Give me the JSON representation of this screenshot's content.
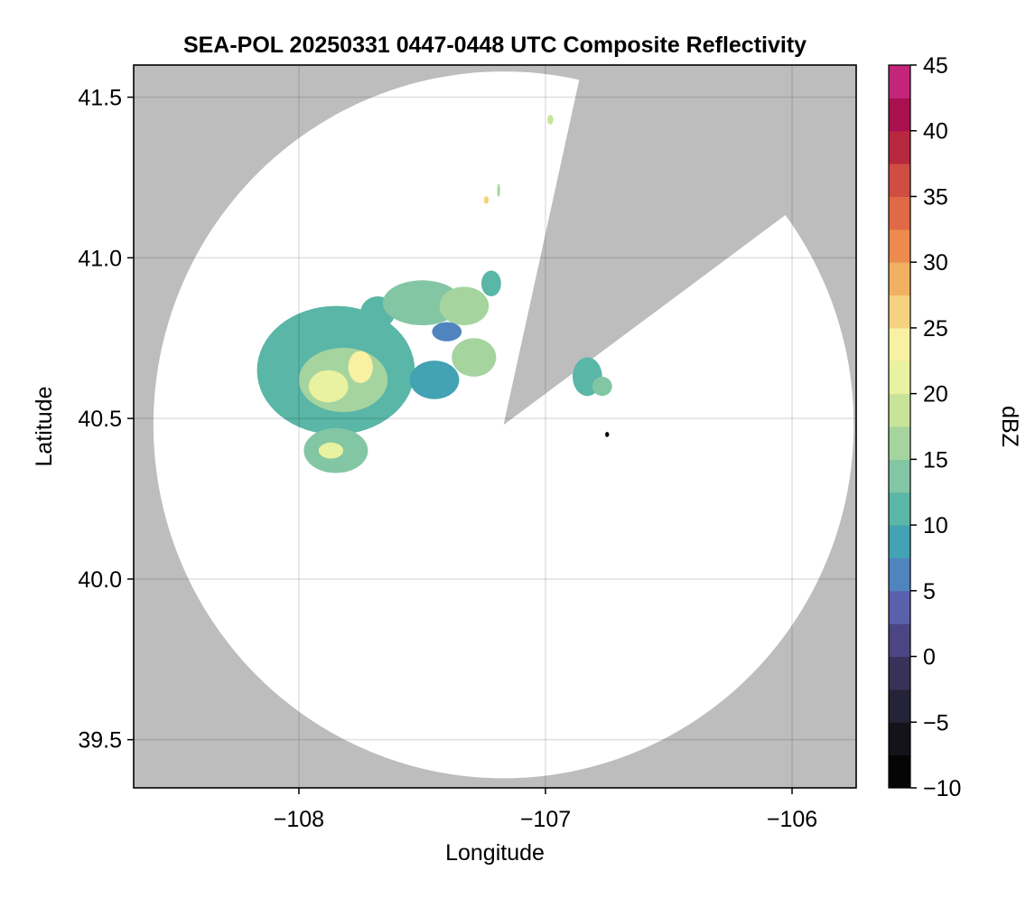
{
  "chart_data": {
    "type": "heatmap",
    "title": "SEA-POL 20250331 0447-0448 UTC Composite Reflectivity",
    "xlabel": "Longitude",
    "ylabel": "Latitude",
    "xlim": [
      -108.67,
      -105.74
    ],
    "ylim": [
      39.35,
      41.6
    ],
    "xticks": [
      -108,
      -107,
      -106
    ],
    "xtick_labels": [
      "−108",
      "−107",
      "−106"
    ],
    "yticks": [
      39.5,
      40.0,
      40.5,
      41.0,
      41.5
    ],
    "ytick_labels": [
      "39.5",
      "40.0",
      "40.5",
      "41.0",
      "41.5"
    ],
    "grid": true,
    "background_color": "#bdbdbd",
    "radar": {
      "center": [
        -107.17,
        40.48
      ],
      "range_lon": 1.42,
      "range_lat": 1.1,
      "blocked_sector": {
        "from_point": [
          -106.87,
          41.53
        ],
        "to_point": [
          -106.05,
          41.12
        ]
      }
    },
    "colorbar": {
      "label": "dBZ",
      "min": -10,
      "max": 45,
      "step": 2.5,
      "ticks": [
        -10,
        -5,
        0,
        5,
        10,
        15,
        20,
        25,
        30,
        35,
        40,
        45
      ],
      "tick_labels": [
        "−10",
        "−5",
        "0",
        "5",
        "10",
        "15",
        "20",
        "25",
        "30",
        "35",
        "40",
        "45"
      ],
      "colormap": "Spectral_r",
      "colors": [
        "#050506",
        "#14131c",
        "#252338",
        "#383258",
        "#4b4584",
        "#5b60ad",
        "#4f84bf",
        "#43a2b3",
        "#5ab6a6",
        "#83c6a4",
        "#a5d49f",
        "#c8e39a",
        "#e8f2a0",
        "#f8f0a2",
        "#f5d27f",
        "#f1b060",
        "#ec8b4d",
        "#e06a45",
        "#cf4d42",
        "#b8283f",
        "#a81050",
        "#c2257a",
        "#d94c9f",
        "#e07bb8",
        "#d79ccc",
        "#b882bf",
        "#9460a8",
        "#6d3b8f",
        "#4a1a6e",
        "#300650"
      ]
    },
    "echoes": [
      {
        "lon": -107.85,
        "lat": 40.65,
        "rx": 0.32,
        "ry": 0.2,
        "dbz": 12
      },
      {
        "lon": -107.82,
        "lat": 40.62,
        "rx": 0.18,
        "ry": 0.1,
        "dbz": 17
      },
      {
        "lon": -107.88,
        "lat": 40.6,
        "rx": 0.08,
        "ry": 0.05,
        "dbz": 22
      },
      {
        "lon": -107.75,
        "lat": 40.66,
        "rx": 0.05,
        "ry": 0.05,
        "dbz": 23
      },
      {
        "lon": -107.85,
        "lat": 40.4,
        "rx": 0.13,
        "ry": 0.07,
        "dbz": 14
      },
      {
        "lon": -107.87,
        "lat": 40.4,
        "rx": 0.05,
        "ry": 0.025,
        "dbz": 21
      },
      {
        "lon": -107.68,
        "lat": 40.83,
        "rx": 0.07,
        "ry": 0.05,
        "dbz": 10
      },
      {
        "lon": -107.5,
        "lat": 40.86,
        "rx": 0.16,
        "ry": 0.07,
        "dbz": 13
      },
      {
        "lon": -107.33,
        "lat": 40.85,
        "rx": 0.1,
        "ry": 0.06,
        "dbz": 16
      },
      {
        "lon": -107.45,
        "lat": 40.62,
        "rx": 0.1,
        "ry": 0.06,
        "dbz": 8
      },
      {
        "lon": -107.29,
        "lat": 40.69,
        "rx": 0.09,
        "ry": 0.06,
        "dbz": 15
      },
      {
        "lon": -107.4,
        "lat": 40.77,
        "rx": 0.06,
        "ry": 0.03,
        "dbz": 7
      },
      {
        "lon": -107.22,
        "lat": 40.92,
        "rx": 0.04,
        "ry": 0.04,
        "dbz": 11
      },
      {
        "lon": -106.83,
        "lat": 40.63,
        "rx": 0.06,
        "ry": 0.06,
        "dbz": 11
      },
      {
        "lon": -106.77,
        "lat": 40.6,
        "rx": 0.04,
        "ry": 0.03,
        "dbz": 14
      },
      {
        "lon": -107.24,
        "lat": 41.18,
        "rx": 0.01,
        "ry": 0.012,
        "dbz": 26
      },
      {
        "lon": -107.19,
        "lat": 41.21,
        "rx": 0.006,
        "ry": 0.02,
        "dbz": 16
      },
      {
        "lon": -106.98,
        "lat": 41.43,
        "rx": 0.012,
        "ry": 0.015,
        "dbz": 18
      },
      {
        "lon": -106.75,
        "lat": 40.45,
        "rx": 0.008,
        "ry": 0.008,
        "dbz": -10
      }
    ]
  }
}
